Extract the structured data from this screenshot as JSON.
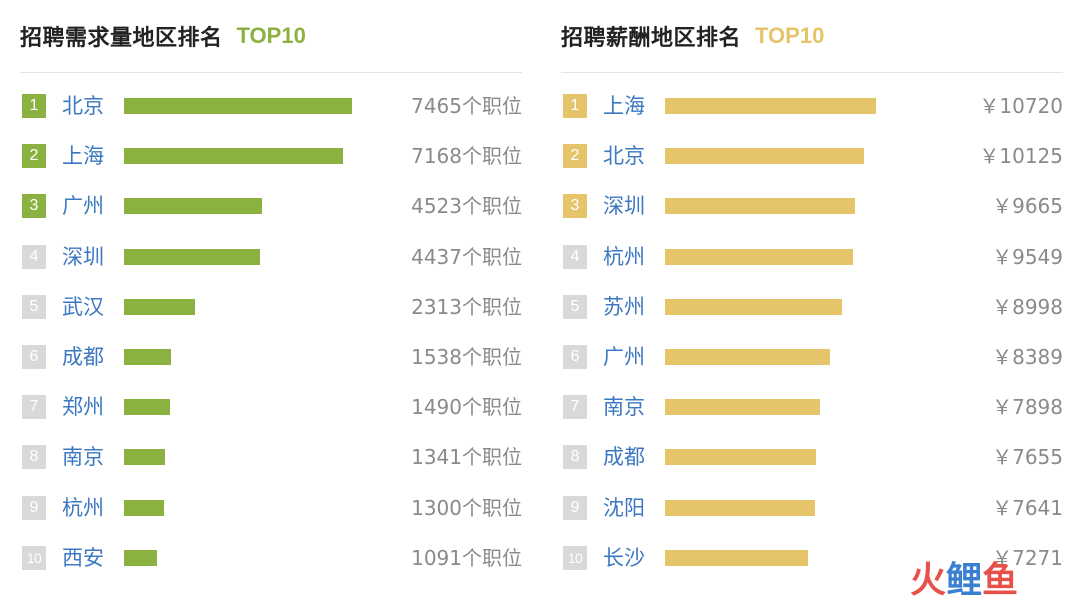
{
  "colors": {
    "demand_accent": "#8bb240",
    "salary_accent": "#e6c46a",
    "inactive_badge": "#d9d9d9",
    "city_text": "#3d78c2",
    "value_text": "#8a8a8a"
  },
  "watermark": {
    "char1": "火",
    "char2": "鲤",
    "char3": "鱼",
    "color1": "#e8514a",
    "color2": "#3a7fd0",
    "color3": "#e8514a"
  },
  "chart_data": [
    {
      "type": "bar",
      "orientation": "horizontal",
      "title": "招聘需求量地区排名",
      "title_tag": "TOP10",
      "xlim": [
        0,
        7465
      ],
      "highlight_top": 3,
      "categories": [
        "北京",
        "上海",
        "广州",
        "深圳",
        "武汉",
        "成都",
        "郑州",
        "南京",
        "杭州",
        "西安"
      ],
      "ranks": [
        "1",
        "2",
        "3",
        "4",
        "5",
        "6",
        "7",
        "8",
        "9",
        "10"
      ],
      "values": [
        7465,
        7168,
        4523,
        4437,
        2313,
        1538,
        1490,
        1341,
        1300,
        1091
      ],
      "value_labels": [
        "7465个职位",
        "7168个职位",
        "4523个职位",
        "4437个职位",
        "2313个职位",
        "1538个职位",
        "1490个职位",
        "1341个职位",
        "1300个职位",
        "1091个职位"
      ],
      "grid": false,
      "legend": "none"
    },
    {
      "type": "bar",
      "orientation": "horizontal",
      "title": "招聘薪酬地区排名",
      "title_tag": "TOP10",
      "xlim": [
        0,
        11600
      ],
      "highlight_top": 3,
      "categories": [
        "上海",
        "北京",
        "深圳",
        "杭州",
        "苏州",
        "广州",
        "南京",
        "成都",
        "沈阳",
        "长沙"
      ],
      "ranks": [
        "1",
        "2",
        "3",
        "4",
        "5",
        "6",
        "7",
        "8",
        "9",
        "10"
      ],
      "values": [
        10720,
        10125,
        9665,
        9549,
        8998,
        8389,
        7898,
        7655,
        7641,
        7271
      ],
      "value_labels": [
        "￥10720",
        "￥10125",
        "￥9665",
        "￥9549",
        "￥8998",
        "￥8389",
        "￥7898",
        "￥7655",
        "￥7641",
        "￥7271"
      ],
      "grid": false,
      "legend": "none"
    }
  ]
}
